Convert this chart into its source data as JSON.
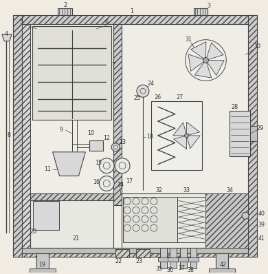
{
  "bg": "#f0ece4",
  "lc": "#444444",
  "fc_wall": "#c8c8c8",
  "fc_inner": "#f8f6f0",
  "fig_w": 3.9,
  "fig_h": 3.98,
  "dpi": 100
}
